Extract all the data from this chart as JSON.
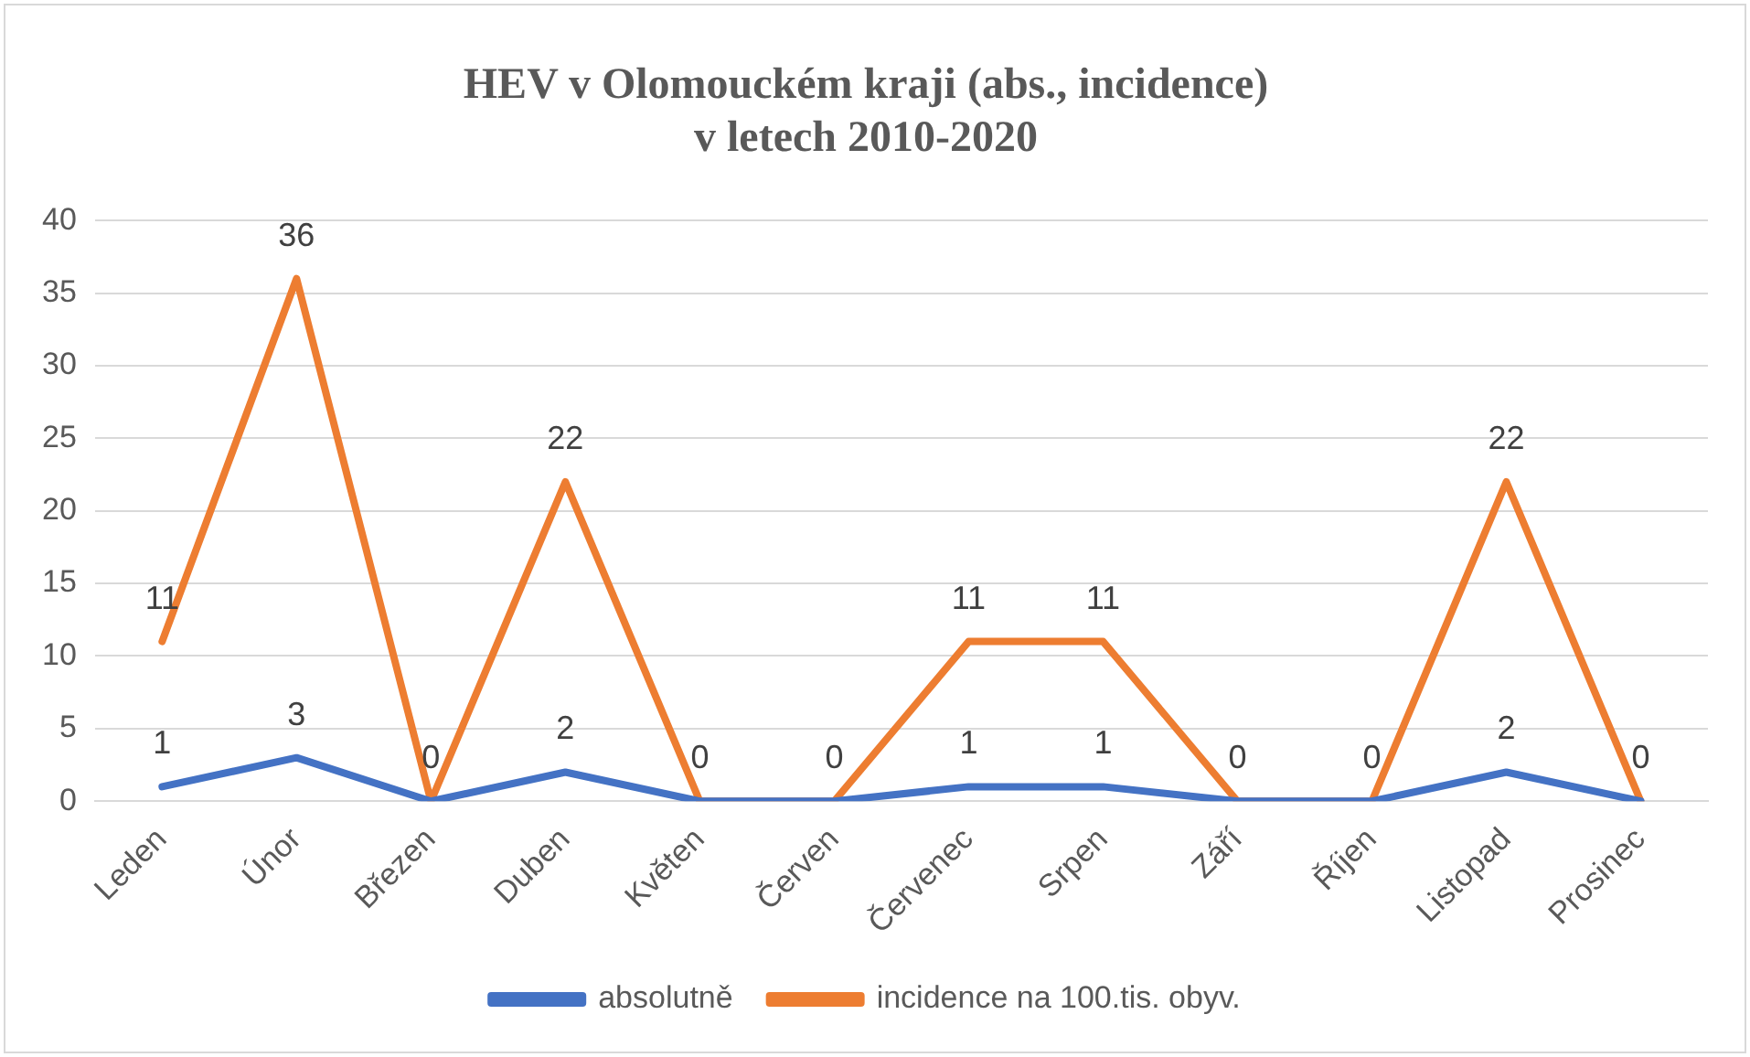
{
  "chart_data": {
    "type": "line",
    "title": "HEV v Olomouckém kraji (abs., incidence)\nv letech 2010-2020",
    "categories": [
      "Leden",
      "Únor",
      "Březen",
      "Duben",
      "Květen",
      "Červen",
      "Červenec",
      "Srpen",
      "Září",
      "Říjen",
      "Listopad",
      "Prosinec"
    ],
    "series": [
      {
        "name": "absolutně",
        "color": "#4472c4",
        "values": [
          1,
          3,
          0,
          2,
          0,
          0,
          1,
          1,
          0,
          0,
          2,
          0
        ],
        "value_labels": [
          "1",
          "3",
          null,
          "2",
          null,
          null,
          "1",
          "1",
          null,
          null,
          "2",
          null
        ]
      },
      {
        "name": "incidence na 100.tis. obyv.",
        "color": "#ed7d31",
        "values": [
          11,
          36,
          0,
          22,
          0,
          0,
          11,
          11,
          0,
          0,
          22,
          0
        ],
        "value_labels": [
          "11",
          "36",
          "0",
          "22",
          "0",
          "0",
          "11",
          "11",
          "0",
          "0",
          "22",
          "0"
        ]
      }
    ],
    "ylim": [
      0,
      40
    ],
    "yticks": [
      0,
      5,
      10,
      15,
      20,
      25,
      30,
      35,
      40
    ],
    "grid": "y",
    "legend": "bottom",
    "marker": "none",
    "line_style": "solid"
  }
}
